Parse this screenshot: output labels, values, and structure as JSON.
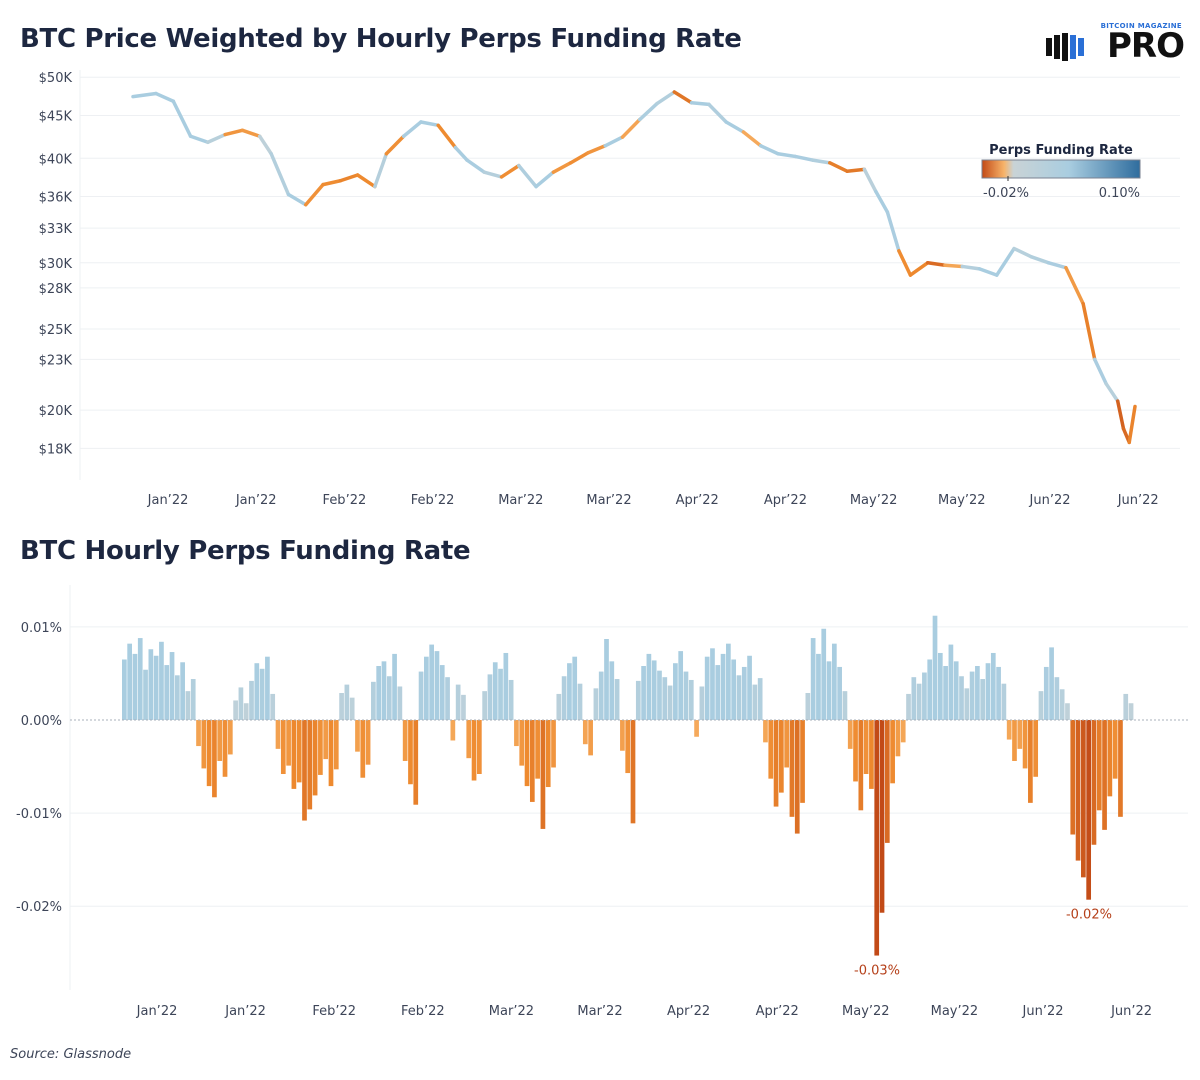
{
  "header": {
    "title_top": "BTC Price Weighted by Hourly Perps Funding Rate",
    "title_bottom": "BTC Hourly Perps Funding Rate",
    "brand_small": "BITCOIN MAGAZINE",
    "brand_big": "PRO",
    "source": "Source: Glassnode"
  },
  "colors": {
    "neutral": "#c9d3d6",
    "positive": "#a9cde0",
    "positive_strong": "#2f6d9e",
    "negative_light": "#f7b46a",
    "negative": "#ee8a2f",
    "negative_strong": "#c24a17",
    "annotation": "#b5401a",
    "zero_line": "#aab0bb",
    "grid": "#eef0f3"
  },
  "chart_data": [
    {
      "type": "line",
      "title": "BTC Price Weighted by Hourly Perps Funding Rate",
      "y_scale": "log",
      "ylim": [
        16500,
        51000
      ],
      "y_ticks": [
        {
          "value": 50000,
          "label": "$50K"
        },
        {
          "value": 45000,
          "label": "$45K"
        },
        {
          "value": 40000,
          "label": "$40K"
        },
        {
          "value": 36000,
          "label": "$36K"
        },
        {
          "value": 33000,
          "label": "$33K"
        },
        {
          "value": 30000,
          "label": "$30K"
        },
        {
          "value": 28000,
          "label": "$28K"
        },
        {
          "value": 25000,
          "label": "$25K"
        },
        {
          "value": 23000,
          "label": "$23K"
        },
        {
          "value": 20000,
          "label": "$20K"
        },
        {
          "value": 18000,
          "label": "$18K"
        }
      ],
      "x_ticks": [
        "Jan’22",
        "Jan’22",
        "Feb’22",
        "Feb’22",
        "Mar’22",
        "Mar’22",
        "Apr’22",
        "Apr’22",
        "May’22",
        "May’22",
        "Jun’22",
        "Jun’22"
      ],
      "x": [
        "2021-12-28",
        "2022-01-01",
        "2022-01-04",
        "2022-01-07",
        "2022-01-10",
        "2022-01-13",
        "2022-01-16",
        "2022-01-19",
        "2022-01-21",
        "2022-01-24",
        "2022-01-27",
        "2022-01-30",
        "2022-02-02",
        "2022-02-05",
        "2022-02-08",
        "2022-02-10",
        "2022-02-13",
        "2022-02-16",
        "2022-02-19",
        "2022-02-22",
        "2022-02-24",
        "2022-02-27",
        "2022-03-02",
        "2022-03-05",
        "2022-03-08",
        "2022-03-11",
        "2022-03-14",
        "2022-03-17",
        "2022-03-20",
        "2022-03-23",
        "2022-03-26",
        "2022-03-29",
        "2022-04-01",
        "2022-04-04",
        "2022-04-07",
        "2022-04-10",
        "2022-04-13",
        "2022-04-16",
        "2022-04-19",
        "2022-04-22",
        "2022-04-25",
        "2022-04-28",
        "2022-05-01",
        "2022-05-04",
        "2022-05-06",
        "2022-05-08",
        "2022-05-10",
        "2022-05-12",
        "2022-05-15",
        "2022-05-18",
        "2022-05-21",
        "2022-05-24",
        "2022-05-27",
        "2022-05-30",
        "2022-06-02",
        "2022-06-05",
        "2022-06-08",
        "2022-06-11",
        "2022-06-13",
        "2022-06-15",
        "2022-06-17",
        "2022-06-18",
        "2022-06-19",
        "2022-06-20"
      ],
      "values": [
        47400,
        47800,
        46800,
        42500,
        41800,
        42700,
        43200,
        42500,
        40500,
        36200,
        35200,
        37200,
        37600,
        38200,
        37000,
        40500,
        42500,
        44200,
        43800,
        41200,
        39800,
        38500,
        38000,
        39200,
        37000,
        38500,
        39500,
        40600,
        41400,
        42400,
        44500,
        46500,
        48000,
        46600,
        46400,
        44200,
        43000,
        41400,
        40500,
        40200,
        39800,
        39500,
        38600,
        38800,
        36500,
        34500,
        31000,
        29000,
        30000,
        29800,
        29700,
        29500,
        29000,
        31200,
        30500,
        30000,
        29600,
        26800,
        23000,
        21500,
        20500,
        19000,
        18300,
        20200
      ],
      "funding_rate_color": "Perps Funding Rate",
      "legend": {
        "title": "Perps Funding Rate",
        "min_label": "-0.02%",
        "max_label": "0.10%",
        "placement": "top-right"
      },
      "grid": true
    },
    {
      "type": "bar",
      "title": "BTC Hourly Perps Funding Rate",
      "ylim": [
        -0.029,
        0.0145
      ],
      "y_ticks": [
        {
          "value": 0.01,
          "label": "0.01%"
        },
        {
          "value": 0.0,
          "label": "0.00%"
        },
        {
          "value": -0.01,
          "label": "-0.01%"
        },
        {
          "value": -0.02,
          "label": "-0.02%"
        }
      ],
      "x_ticks": [
        "Jan’22",
        "Jan’22",
        "Feb’22",
        "Feb’22",
        "Mar’22",
        "Mar’22",
        "Apr’22",
        "Apr’22",
        "May’22",
        "May’22",
        "Jun’22",
        "Jun’22"
      ],
      "values": [
        0.0065,
        0.0082,
        0.0071,
        0.0088,
        0.0054,
        0.0076,
        0.0069,
        0.0084,
        0.0059,
        0.0073,
        0.0048,
        0.0062,
        0.0031,
        0.0044,
        -0.0028,
        -0.0052,
        -0.0071,
        -0.0083,
        -0.0044,
        -0.0061,
        -0.0037,
        0.0021,
        0.0035,
        0.0018,
        0.0042,
        0.0061,
        0.0055,
        0.0068,
        0.0028,
        -0.0031,
        -0.0058,
        -0.0049,
        -0.0074,
        -0.0067,
        -0.0108,
        -0.0096,
        -0.0081,
        -0.0059,
        -0.0042,
        -0.0071,
        -0.0053,
        0.0029,
        0.0038,
        0.0024,
        -0.0034,
        -0.0062,
        -0.0048,
        0.0041,
        0.0058,
        0.0063,
        0.0047,
        0.0071,
        0.0036,
        -0.0044,
        -0.0069,
        -0.0091,
        0.0052,
        0.0068,
        0.0081,
        0.0074,
        0.0059,
        0.0046,
        -0.0022,
        0.0038,
        0.0027,
        -0.0041,
        -0.0065,
        -0.0058,
        0.0031,
        0.0049,
        0.0062,
        0.0055,
        0.0072,
        0.0043,
        -0.0028,
        -0.0049,
        -0.0071,
        -0.0088,
        -0.0063,
        -0.0117,
        -0.0072,
        -0.0051,
        0.0028,
        0.0047,
        0.0061,
        0.0068,
        0.0039,
        -0.0026,
        -0.0038,
        0.0034,
        0.0052,
        0.0087,
        0.0063,
        0.0044,
        -0.0033,
        -0.0057,
        -0.0111,
        0.0042,
        0.0058,
        0.0071,
        0.0064,
        0.0053,
        0.0046,
        0.0037,
        0.0061,
        0.0074,
        0.0052,
        0.0043,
        -0.0018,
        0.0036,
        0.0068,
        0.0077,
        0.0059,
        0.0071,
        0.0082,
        0.0065,
        0.0048,
        0.0057,
        0.0069,
        0.0038,
        0.0045,
        -0.0024,
        -0.0063,
        -0.0093,
        -0.0078,
        -0.0051,
        -0.0104,
        -0.0122,
        -0.0089,
        0.0029,
        0.0088,
        0.0071,
        0.0098,
        0.0063,
        0.0082,
        0.0057,
        0.0031,
        -0.0031,
        -0.0066,
        -0.0097,
        -0.0058,
        -0.0074,
        -0.0253,
        -0.0207,
        -0.0132,
        -0.0068,
        -0.0039,
        -0.0024,
        0.0028,
        0.0046,
        0.0039,
        0.0051,
        0.0065,
        0.0112,
        0.0072,
        0.0058,
        0.0081,
        0.0063,
        0.0047,
        0.0034,
        0.0052,
        0.0058,
        0.0044,
        0.0061,
        0.0072,
        0.0057,
        0.0039,
        -0.0021,
        -0.0044,
        -0.0031,
        -0.0052,
        -0.0089,
        -0.0061,
        0.0031,
        0.0057,
        0.0078,
        0.0046,
        0.0033,
        0.0018,
        -0.0123,
        -0.0151,
        -0.0169,
        -0.0193,
        -0.0134,
        -0.0097,
        -0.0118,
        -0.0082,
        -0.0063,
        -0.0104,
        0.0028,
        0.0018
      ],
      "annotations": [
        {
          "text": "-0.03%",
          "value": -0.0253
        },
        {
          "text": "-0.02%",
          "value": -0.0193
        }
      ],
      "grid": true
    }
  ]
}
